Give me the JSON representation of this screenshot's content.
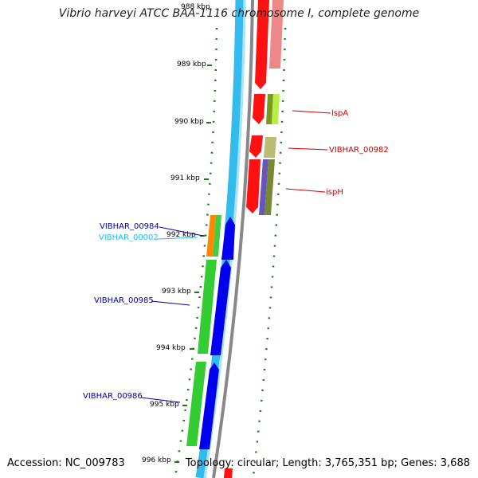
{
  "title": "Vibrio harveyi ATCC BAA-1116 chromosome I, complete genome",
  "accession": "Accession: NC_009783",
  "topology": "Topology: circular; Length: 3,765,351 bp; Genes: 3,688",
  "ticks": [
    "988 kbp",
    "989 kbp",
    "990 kbp",
    "991 kbp",
    "992 kbp",
    "993 kbp",
    "994 kbp",
    "995 kbp",
    "996 kbp"
  ],
  "genes": {
    "lspA": "lspA",
    "vibhar00982": "VIBHAR_00982",
    "ispH": "ispH",
    "vibhar00984": "VIBHAR_00984",
    "vibhar00002": "VIBHAR_00002",
    "vibhar00985": "VIBHAR_00985",
    "vibhar00986": "VIBHAR_00986"
  },
  "colors": {
    "reverse_gene": "#ff0000",
    "forward_gene": "#0000ee",
    "gc_skew": "#1a7a1a",
    "backbone_blue": "#33bbee",
    "backbone_gray": "#888888",
    "forward_label": "#0000aa",
    "rna_label": "#22bbee",
    "reverse_label": "#cc0000"
  }
}
